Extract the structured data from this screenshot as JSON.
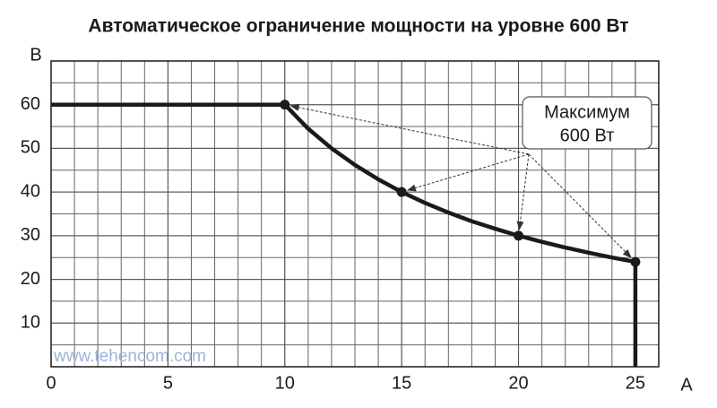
{
  "chart_data": {
    "type": "line",
    "title": "Автоматическое ограничение мощности на уровне 600 Вт",
    "xlabel": "А",
    "ylabel": "В",
    "xlim": [
      0,
      26
    ],
    "ylim": [
      0,
      70
    ],
    "xticks": [
      0,
      5,
      10,
      15,
      20,
      25
    ],
    "yticks": [
      10,
      20,
      30,
      40,
      50,
      60
    ],
    "x_grid_step": 1,
    "y_grid_step": 5,
    "grid": true,
    "series": [
      {
        "color": "#1a1a1a",
        "x": [
          0,
          10,
          11,
          12,
          13,
          14,
          15,
          16,
          17,
          18,
          19,
          20,
          21,
          22,
          23,
          24,
          25,
          25
        ],
        "y": [
          60,
          60,
          54.5,
          50,
          46.2,
          42.9,
          40,
          37.5,
          35.3,
          33.3,
          31.6,
          30,
          28.6,
          27.3,
          26.1,
          25,
          24,
          0
        ]
      }
    ],
    "markers": {
      "x": [
        10,
        15,
        20,
        25
      ],
      "y": [
        60,
        40,
        30,
        24
      ]
    },
    "annotation": [
      "Максимум",
      "600 Вт"
    ],
    "watermark": "www.tehencom.com"
  }
}
